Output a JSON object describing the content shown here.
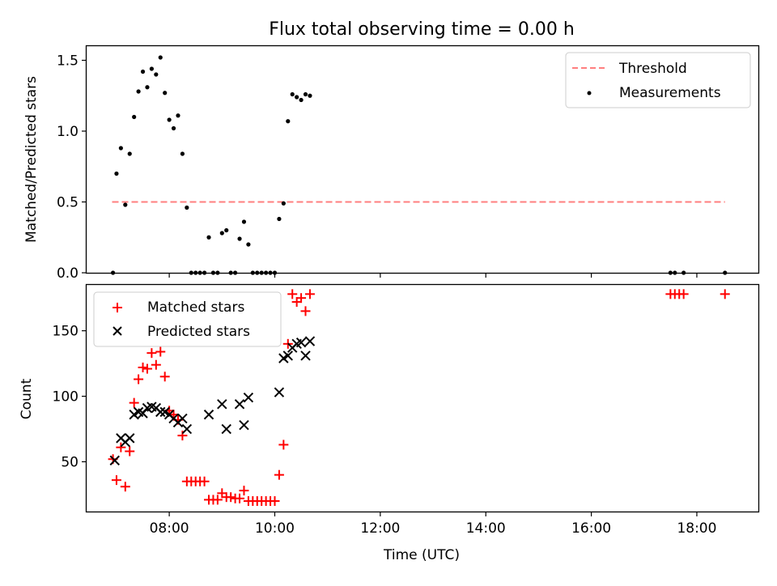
{
  "chart_data": [
    {
      "type": "scatter",
      "title": "Flux total observing time = 0.00 h",
      "xlabel": "",
      "ylabel": "Matched/Predicted stars",
      "xlim": [
        "06:26",
        "19:10"
      ],
      "ylim": [
        0,
        1.6
      ],
      "yticks": [
        0.0,
        0.5,
        1.0,
        1.5
      ],
      "ytick_labels": [
        "0.0",
        "0.5",
        "1.0",
        "1.5"
      ],
      "xticks": [
        "08:00",
        "10:00",
        "12:00",
        "14:00",
        "16:00",
        "18:00"
      ],
      "grid": false,
      "legend_position": "upper right",
      "legend": [
        "Threshold",
        "Measurements"
      ],
      "threshold": {
        "name": "Threshold",
        "value": 0.5,
        "x_start": "06:55",
        "x_end": "18:32",
        "color": "#ff7f7f"
      },
      "series": [
        {
          "name": "Measurements",
          "color": "#000000",
          "points": [
            [
              "06:56",
              0.0
            ],
            [
              "07:00",
              0.7
            ],
            [
              "07:05",
              0.88
            ],
            [
              "07:10",
              0.48
            ],
            [
              "07:15",
              0.84
            ],
            [
              "07:20",
              1.1
            ],
            [
              "07:25",
              1.28
            ],
            [
              "07:30",
              1.42
            ],
            [
              "07:35",
              1.31
            ],
            [
              "07:40",
              1.44
            ],
            [
              "07:45",
              1.4
            ],
            [
              "07:50",
              1.52
            ],
            [
              "07:55",
              1.27
            ],
            [
              "08:00",
              1.08
            ],
            [
              "08:05",
              1.02
            ],
            [
              "08:10",
              1.11
            ],
            [
              "08:15",
              0.84
            ],
            [
              "08:20",
              0.46
            ],
            [
              "08:25",
              0.0
            ],
            [
              "08:30",
              0.0
            ],
            [
              "08:35",
              0.0
            ],
            [
              "08:40",
              0.0
            ],
            [
              "08:45",
              0.25
            ],
            [
              "08:50",
              0.0
            ],
            [
              "08:55",
              0.0
            ],
            [
              "09:00",
              0.28
            ],
            [
              "09:05",
              0.3
            ],
            [
              "09:10",
              0.0
            ],
            [
              "09:15",
              0.0
            ],
            [
              "09:20",
              0.24
            ],
            [
              "09:25",
              0.36
            ],
            [
              "09:30",
              0.2
            ],
            [
              "09:35",
              0.0
            ],
            [
              "09:40",
              0.0
            ],
            [
              "09:45",
              0.0
            ],
            [
              "09:50",
              0.0
            ],
            [
              "09:55",
              0.0
            ],
            [
              "10:00",
              0.0
            ],
            [
              "10:05",
              0.38
            ],
            [
              "10:10",
              0.49
            ],
            [
              "10:15",
              1.07
            ],
            [
              "10:20",
              1.26
            ],
            [
              "10:25",
              1.24
            ],
            [
              "10:30",
              1.22
            ],
            [
              "10:35",
              1.26
            ],
            [
              "10:40",
              1.25
            ],
            [
              "17:30",
              0.0
            ],
            [
              "17:35",
              0.0
            ],
            [
              "17:45",
              0.0
            ],
            [
              "18:32",
              0.0
            ]
          ]
        }
      ]
    },
    {
      "type": "scatter",
      "title": "",
      "xlabel": "Time (UTC)",
      "ylabel": "Count",
      "xlim": [
        "06:26",
        "19:10"
      ],
      "ylim": [
        12,
        185
      ],
      "yticks": [
        50,
        100,
        150
      ],
      "ytick_labels": [
        "50",
        "100",
        "150"
      ],
      "xticks": [
        "08:00",
        "10:00",
        "12:00",
        "14:00",
        "16:00",
        "18:00"
      ],
      "xtick_labels": [
        "08:00",
        "10:00",
        "12:00",
        "14:00",
        "16:00",
        "18:00"
      ],
      "grid": false,
      "legend_position": "upper left",
      "legend": [
        "Matched stars",
        "Predicted stars"
      ],
      "series": [
        {
          "name": "Matched stars",
          "marker": "+",
          "color": "#ff0000",
          "points": [
            [
              "06:56",
              52
            ],
            [
              "07:00",
              36
            ],
            [
              "07:05",
              61
            ],
            [
              "07:10",
              31
            ],
            [
              "07:15",
              58
            ],
            [
              "07:20",
              95
            ],
            [
              "07:25",
              113
            ],
            [
              "07:30",
              122
            ],
            [
              "07:35",
              121
            ],
            [
              "07:40",
              133
            ],
            [
              "07:45",
              124
            ],
            [
              "07:50",
              134
            ],
            [
              "07:55",
              115
            ],
            [
              "08:00",
              89
            ],
            [
              "08:05",
              86
            ],
            [
              "08:10",
              82
            ],
            [
              "08:15",
              70
            ],
            [
              "08:20",
              35
            ],
            [
              "08:25",
              35
            ],
            [
              "08:30",
              35
            ],
            [
              "08:35",
              35
            ],
            [
              "08:40",
              35
            ],
            [
              "08:45",
              21
            ],
            [
              "08:50",
              21
            ],
            [
              "08:55",
              21
            ],
            [
              "09:00",
              26
            ],
            [
              "09:05",
              23
            ],
            [
              "09:10",
              23
            ],
            [
              "09:15",
              22
            ],
            [
              "09:20",
              22
            ],
            [
              "09:25",
              28
            ],
            [
              "09:30",
              20
            ],
            [
              "09:35",
              20
            ],
            [
              "09:40",
              20
            ],
            [
              "09:45",
              20
            ],
            [
              "09:50",
              20
            ],
            [
              "09:55",
              20
            ],
            [
              "10:00",
              20
            ],
            [
              "10:05",
              40
            ],
            [
              "10:10",
              63
            ],
            [
              "10:15",
              140
            ],
            [
              "10:20",
              178
            ],
            [
              "10:25",
              172
            ],
            [
              "10:30",
              175
            ],
            [
              "10:35",
              165
            ],
            [
              "10:40",
              178
            ],
            [
              "17:30",
              178
            ],
            [
              "17:35",
              178
            ],
            [
              "17:40",
              178
            ],
            [
              "17:45",
              178
            ],
            [
              "18:32",
              178
            ]
          ]
        },
        {
          "name": "Predicted stars",
          "marker": "x",
          "color": "#000000",
          "points": [
            [
              "06:58",
              51
            ],
            [
              "07:05",
              68
            ],
            [
              "07:10",
              65
            ],
            [
              "07:15",
              68
            ],
            [
              "07:20",
              86
            ],
            [
              "07:25",
              88
            ],
            [
              "07:30",
              87
            ],
            [
              "07:35",
              91
            ],
            [
              "07:40",
              92
            ],
            [
              "07:45",
              91
            ],
            [
              "07:50",
              88
            ],
            [
              "07:55",
              88
            ],
            [
              "08:00",
              86
            ],
            [
              "08:05",
              83
            ],
            [
              "08:10",
              80
            ],
            [
              "08:15",
              83
            ],
            [
              "08:20",
              75
            ],
            [
              "08:45",
              86
            ],
            [
              "09:00",
              94
            ],
            [
              "09:05",
              75
            ],
            [
              "09:20",
              94
            ],
            [
              "09:25",
              78
            ],
            [
              "09:30",
              99
            ],
            [
              "10:05",
              103
            ],
            [
              "10:10",
              129
            ],
            [
              "10:15",
              131
            ],
            [
              "10:20",
              137
            ],
            [
              "10:25",
              140
            ],
            [
              "10:30",
              141
            ],
            [
              "10:35",
              131
            ],
            [
              "10:40",
              142
            ]
          ]
        }
      ]
    }
  ]
}
